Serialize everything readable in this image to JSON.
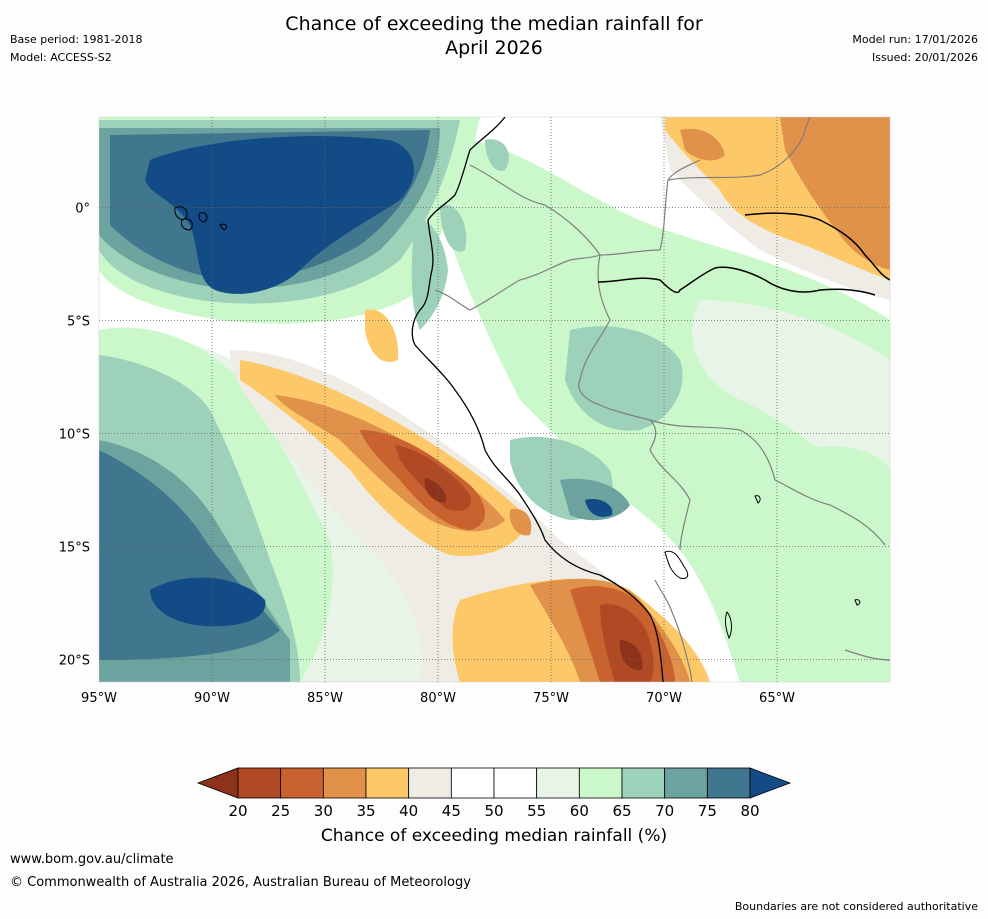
{
  "header": {
    "title_line1": "Chance of exceeding the median rainfall for",
    "title_line2": "April 2026",
    "base_period": "Base period: 1981-2018",
    "model": "Model: ACCESS-S2",
    "model_run": "Model run: 17/01/2026",
    "issued": "Issued: 20/01/2026"
  },
  "map": {
    "lat_labels": [
      "0°",
      "5°S",
      "10°S",
      "15°S",
      "20°S"
    ],
    "lon_labels": [
      "95°W",
      "90°W",
      "85°W",
      "80°W",
      "75°W",
      "70°W",
      "65°W"
    ],
    "extent": {
      "lon_min": -95,
      "lon_max": -60,
      "lat_min": -21,
      "lat_max": 4
    },
    "colors": {
      "lt20": "#8e321c",
      "b20_25": "#b04a25",
      "b25_30": "#c9622f",
      "b30_35": "#e0914a",
      "b35_40": "#fdc867",
      "b40_45": "#efece6",
      "b45_50": "#ffffff",
      "b50_55": "#ffffff",
      "b55_60": "#e8f4e8",
      "b60_65": "#cbf8cb",
      "b65_70": "#9dd1b9",
      "b70_75": "#6ca39f",
      "b75_80": "#41768f",
      "gt80": "#124b85"
    }
  },
  "colorbar": {
    "ticks": [
      "20",
      "25",
      "30",
      "35",
      "40",
      "45",
      "50",
      "55",
      "60",
      "65",
      "70",
      "75",
      "80"
    ],
    "colors": [
      "#b04a25",
      "#c9622f",
      "#e0914a",
      "#fdc867",
      "#efece6",
      "#ffffff",
      "#ffffff",
      "#e8f4e8",
      "#cbf8cb",
      "#9dd1b9",
      "#6ca39f",
      "#41768f"
    ],
    "low_color": "#8e321c",
    "high_color": "#124b85",
    "label": "Chance of exceeding median rainfall (%)"
  },
  "footer": {
    "url": "www.bom.gov.au/climate",
    "copyright": "© Commonwealth of Australia 2026, Australian Bureau of Meteorology",
    "disclaimer": "Boundaries are not considered authoritative"
  }
}
